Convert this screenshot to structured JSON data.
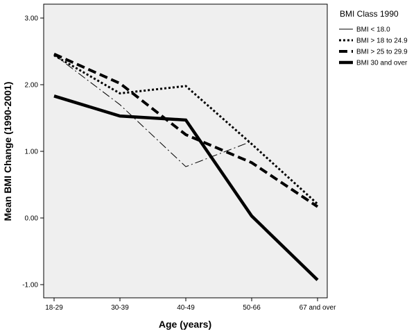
{
  "chart_data": {
    "type": "line",
    "title": "",
    "xlabel": "Age (years)",
    "ylabel": "Mean BMI Change (1990-2001)",
    "categories": [
      "18-29",
      "30-39",
      "40-49",
      "50-66",
      "67 and over"
    ],
    "ylim": [
      -1.2,
      3.2
    ],
    "yticks": [
      "3.00",
      "2.00",
      "1.00",
      "0.00",
      "-1.00"
    ],
    "ytick_values": [
      3,
      2,
      1,
      0,
      -1
    ],
    "grid": false,
    "legend": {
      "title": "BMI Class 1990",
      "placement": "right"
    },
    "plot_background": "#efefef",
    "series": [
      {
        "name": "BMI  < 18.0",
        "values": [
          2.45,
          1.7,
          0.77,
          1.15,
          null
        ],
        "style": "thin-dashdot"
      },
      {
        "name": "BMI > 18 to 24.9",
        "values": [
          2.44,
          1.87,
          1.98,
          1.11,
          0.21
        ],
        "style": "dotted"
      },
      {
        "name": "BMI > 25 to 29.9",
        "values": [
          2.46,
          2.02,
          1.25,
          0.83,
          0.17
        ],
        "style": "dashed"
      },
      {
        "name": "BMI 30 and over",
        "values": [
          1.83,
          1.53,
          1.47,
          0.03,
          -0.93
        ],
        "style": "thick-solid"
      }
    ]
  }
}
